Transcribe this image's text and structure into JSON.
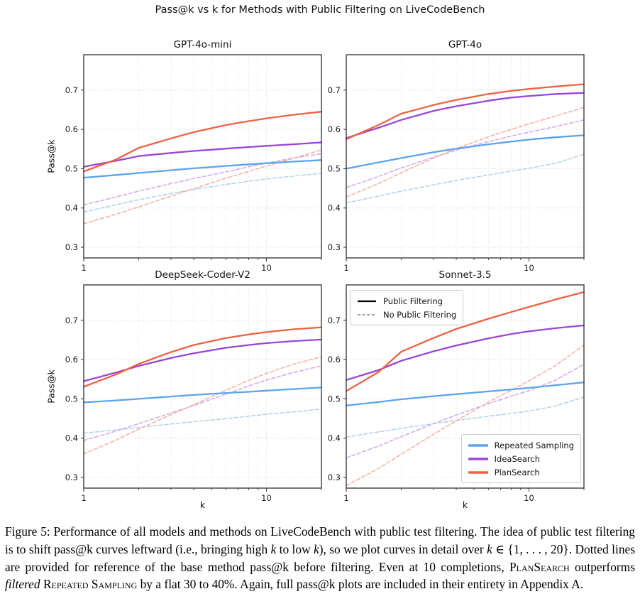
{
  "figure_title": "Pass@k vs k for Methods with Public Filtering on LiveCodeBench",
  "colors": {
    "repeated_sampling": "#5BA4E9",
    "ideasearch": "#9B45D8",
    "plansearch": "#EE6142",
    "repeated_sampling_nofilter": "#A9D1F4",
    "ideasearch_nofilter": "#CFA7EE",
    "plansearch_nofilter": "#F6AE9D",
    "grid_major": "#d4d4d4",
    "grid_minor": "#e3e3e3",
    "axis_border": "#3c3c3c",
    "tick_text": "#1a1a1a",
    "legend_solid_sample": "#000000",
    "legend_dashed_sample": "#7f7f7f"
  },
  "axes": {
    "xlabel": "k",
    "ylabel": "Pass@k",
    "xscale": "log",
    "xlim": [
      1,
      20
    ],
    "ylim": [
      0.273,
      0.79
    ],
    "xticks": [
      {
        "value": 1,
        "label": "1"
      },
      {
        "value": 10,
        "label": "10"
      }
    ],
    "minor_xticks": [
      2,
      3,
      4,
      5,
      6,
      7,
      8,
      9,
      20
    ],
    "yticks": [
      {
        "value": 0.3,
        "label": "0.3"
      },
      {
        "value": 0.4,
        "label": "0.4"
      },
      {
        "value": 0.5,
        "label": "0.5"
      },
      {
        "value": 0.6,
        "label": "0.6"
      },
      {
        "value": 0.7,
        "label": "0.7"
      }
    ]
  },
  "legend_filtering": {
    "items": [
      {
        "label": "Public Filtering",
        "style": "solid"
      },
      {
        "label": "No Public Filtering",
        "style": "dashed"
      }
    ]
  },
  "legend_methods": {
    "items": [
      {
        "label": "Repeated Sampling",
        "color_key": "repeated_sampling"
      },
      {
        "label": "IdeaSearch",
        "color_key": "ideasearch"
      },
      {
        "label": "PlanSearch",
        "color_key": "plansearch"
      }
    ]
  },
  "chart_data": [
    {
      "type": "line",
      "title": "GPT-4o-mini",
      "xlabel": "",
      "ylabel": "Pass@k",
      "xscale": "log",
      "xlim": [
        1,
        20
      ],
      "ylim": [
        0.273,
        0.79
      ],
      "x": [
        1,
        1.5,
        2,
        3,
        4,
        6,
        8,
        10,
        14,
        20
      ],
      "series": [
        {
          "name": "Repeated Sampling (No Public Filtering)",
          "style": "dashed",
          "color_key": "repeated_sampling_nofilter",
          "values": [
            0.39,
            0.408,
            0.421,
            0.437,
            0.447,
            0.46,
            0.468,
            0.474,
            0.481,
            0.488
          ]
        },
        {
          "name": "IdeaSearch (No Public Filtering)",
          "style": "dashed",
          "color_key": "ideasearch_nofilter",
          "values": [
            0.408,
            0.428,
            0.443,
            0.462,
            0.475,
            0.492,
            0.505,
            0.514,
            0.527,
            0.538
          ]
        },
        {
          "name": "PlanSearch (No Public Filtering)",
          "style": "dashed",
          "color_key": "plansearch_nofilter",
          "values": [
            0.36,
            0.384,
            0.403,
            0.43,
            0.449,
            0.476,
            0.493,
            0.507,
            0.526,
            0.548
          ]
        },
        {
          "name": "Repeated Sampling (Public Filtering)",
          "style": "solid",
          "color_key": "repeated_sampling",
          "values": [
            0.477,
            0.484,
            0.489,
            0.496,
            0.501,
            0.507,
            0.511,
            0.514,
            0.518,
            0.522
          ]
        },
        {
          "name": "IdeaSearch (Public Filtering)",
          "style": "solid",
          "color_key": "ideasearch",
          "values": [
            0.505,
            0.52,
            0.532,
            0.54,
            0.545,
            0.551,
            0.555,
            0.558,
            0.562,
            0.567
          ]
        },
        {
          "name": "PlanSearch (Public Filtering)",
          "style": "solid",
          "color_key": "plansearch",
          "values": [
            0.493,
            0.523,
            0.553,
            0.577,
            0.593,
            0.611,
            0.621,
            0.628,
            0.637,
            0.645
          ]
        }
      ]
    },
    {
      "type": "line",
      "title": "GPT-4o",
      "xlabel": "",
      "ylabel": "",
      "xscale": "log",
      "xlim": [
        1,
        20
      ],
      "ylim": [
        0.273,
        0.79
      ],
      "x": [
        1,
        1.5,
        2,
        3,
        4,
        6,
        8,
        10,
        14,
        20
      ],
      "series": [
        {
          "name": "Repeated Sampling (No Public Filtering)",
          "style": "dashed",
          "color_key": "repeated_sampling_nofilter",
          "values": [
            0.413,
            0.43,
            0.443,
            0.459,
            0.47,
            0.484,
            0.494,
            0.501,
            0.514,
            0.537
          ]
        },
        {
          "name": "IdeaSearch (No Public Filtering)",
          "style": "dashed",
          "color_key": "ideasearch_nofilter",
          "values": [
            0.452,
            0.48,
            0.502,
            0.529,
            0.547,
            0.569,
            0.583,
            0.593,
            0.607,
            0.624
          ]
        },
        {
          "name": "PlanSearch (No Public Filtering)",
          "style": "dashed",
          "color_key": "plansearch_nofilter",
          "values": [
            0.428,
            0.462,
            0.49,
            0.527,
            0.551,
            0.581,
            0.6,
            0.614,
            0.634,
            0.656
          ]
        },
        {
          "name": "Repeated Sampling (Public Filtering)",
          "style": "solid",
          "color_key": "repeated_sampling",
          "values": [
            0.5,
            0.516,
            0.527,
            0.542,
            0.551,
            0.562,
            0.569,
            0.574,
            0.58,
            0.585
          ]
        },
        {
          "name": "IdeaSearch (Public Filtering)",
          "style": "solid",
          "color_key": "ideasearch",
          "values": [
            0.578,
            0.604,
            0.624,
            0.647,
            0.659,
            0.673,
            0.681,
            0.685,
            0.69,
            0.693
          ]
        },
        {
          "name": "PlanSearch (Public Filtering)",
          "style": "solid",
          "color_key": "plansearch",
          "values": [
            0.575,
            0.611,
            0.64,
            0.662,
            0.675,
            0.69,
            0.698,
            0.703,
            0.709,
            0.715
          ]
        }
      ]
    },
    {
      "type": "line",
      "title": "DeepSeek-Coder-V2",
      "xlabel": "k",
      "ylabel": "Pass@k",
      "xscale": "log",
      "xlim": [
        1,
        20
      ],
      "ylim": [
        0.273,
        0.79
      ],
      "x": [
        1,
        1.5,
        2,
        3,
        4,
        6,
        8,
        10,
        14,
        20
      ],
      "series": [
        {
          "name": "Repeated Sampling (No Public Filtering)",
          "style": "dashed",
          "color_key": "repeated_sampling_nofilter",
          "values": [
            0.413,
            0.421,
            0.427,
            0.436,
            0.442,
            0.45,
            0.456,
            0.461,
            0.467,
            0.474
          ]
        },
        {
          "name": "IdeaSearch (No Public Filtering)",
          "style": "dashed",
          "color_key": "ideasearch_nofilter",
          "values": [
            0.394,
            0.418,
            0.437,
            0.464,
            0.483,
            0.512,
            0.533,
            0.548,
            0.567,
            0.584
          ]
        },
        {
          "name": "PlanSearch (No Public Filtering)",
          "style": "dashed",
          "color_key": "plansearch_nofilter",
          "values": [
            0.36,
            0.395,
            0.423,
            0.46,
            0.485,
            0.522,
            0.547,
            0.565,
            0.588,
            0.607
          ]
        },
        {
          "name": "Repeated Sampling (Public Filtering)",
          "style": "solid",
          "color_key": "repeated_sampling",
          "values": [
            0.491,
            0.496,
            0.5,
            0.506,
            0.51,
            0.515,
            0.518,
            0.521,
            0.525,
            0.529
          ]
        },
        {
          "name": "IdeaSearch (Public Filtering)",
          "style": "solid",
          "color_key": "ideasearch",
          "values": [
            0.545,
            0.567,
            0.584,
            0.604,
            0.616,
            0.63,
            0.637,
            0.642,
            0.647,
            0.651
          ]
        },
        {
          "name": "PlanSearch (Public Filtering)",
          "style": "solid",
          "color_key": "plansearch",
          "values": [
            0.531,
            0.562,
            0.589,
            0.619,
            0.637,
            0.655,
            0.664,
            0.67,
            0.677,
            0.682
          ]
        }
      ]
    },
    {
      "type": "line",
      "title": "Sonnet-3.5",
      "xlabel": "k",
      "ylabel": "",
      "xscale": "log",
      "xlim": [
        1,
        20
      ],
      "ylim": [
        0.273,
        0.79
      ],
      "x": [
        1,
        1.5,
        2,
        3,
        4,
        6,
        8,
        10,
        14,
        20
      ],
      "series": [
        {
          "name": "Repeated Sampling (No Public Filtering)",
          "style": "dashed",
          "color_key": "repeated_sampling_nofilter",
          "values": [
            0.403,
            0.416,
            0.425,
            0.437,
            0.445,
            0.456,
            0.463,
            0.469,
            0.482,
            0.505
          ]
        },
        {
          "name": "IdeaSearch (No Public Filtering)",
          "style": "dashed",
          "color_key": "ideasearch_nofilter",
          "values": [
            0.35,
            0.38,
            0.404,
            0.437,
            0.459,
            0.488,
            0.507,
            0.521,
            0.548,
            0.588
          ]
        },
        {
          "name": "PlanSearch (No Public Filtering)",
          "style": "dashed",
          "color_key": "plansearch_nofilter",
          "values": [
            0.279,
            0.323,
            0.359,
            0.41,
            0.444,
            0.492,
            0.522,
            0.546,
            0.585,
            0.637
          ]
        },
        {
          "name": "Repeated Sampling (Public Filtering)",
          "style": "solid",
          "color_key": "repeated_sampling",
          "values": [
            0.483,
            0.492,
            0.499,
            0.507,
            0.512,
            0.519,
            0.524,
            0.528,
            0.535,
            0.542
          ]
        },
        {
          "name": "IdeaSearch (Public Filtering)",
          "style": "solid",
          "color_key": "ideasearch",
          "values": [
            0.548,
            0.573,
            0.597,
            0.621,
            0.636,
            0.654,
            0.665,
            0.672,
            0.68,
            0.687
          ]
        },
        {
          "name": "PlanSearch (Public Filtering)",
          "style": "solid",
          "color_key": "plansearch",
          "values": [
            0.52,
            0.568,
            0.62,
            0.655,
            0.678,
            0.704,
            0.721,
            0.734,
            0.753,
            0.772
          ]
        }
      ]
    }
  ],
  "caption": {
    "segments": [
      {
        "style": "normal",
        "text": "Figure 5: Performance of all models and methods on LiveCodeBench with public test filtering. The idea of public test filtering is to shift pass@k curves leftward (i.e., bringing high "
      },
      {
        "style": "italic",
        "text": "k"
      },
      {
        "style": "normal",
        "text": " to low "
      },
      {
        "style": "italic",
        "text": "k"
      },
      {
        "style": "normal",
        "text": "), so we plot curves in detail over "
      },
      {
        "style": "italic",
        "text": "k"
      },
      {
        "style": "normal",
        "text": " ∈ {1, . . . , 20}. Dotted lines are provided for reference of the base method pass@k before filtering. Even at 10 completions, "
      },
      {
        "style": "smallcaps",
        "text": "PlanSearch"
      },
      {
        "style": "normal",
        "text": " outperforms "
      },
      {
        "style": "italic",
        "text": "filtered"
      },
      {
        "style": "normal",
        "text": " "
      },
      {
        "style": "smallcaps",
        "text": "Repeated Sampling"
      },
      {
        "style": "normal",
        "text": " by a flat 30 to 40%. Again, full pass@k plots are included in their entirety in Appendix A."
      }
    ]
  }
}
